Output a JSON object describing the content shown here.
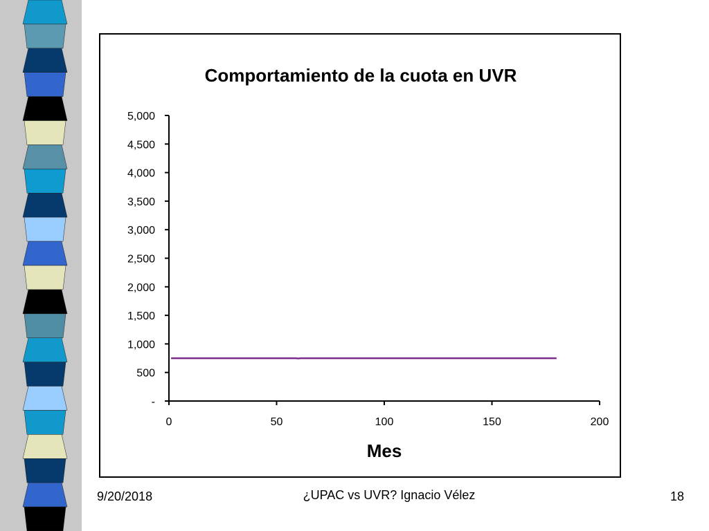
{
  "slide": {
    "date": "9/20/2018",
    "footer_text": "¿UPAC vs UVR? Ignacio Vélez",
    "page_number": "18"
  },
  "decor": {
    "stripe_colors": [
      "#1199cc",
      "#5b9ab0",
      "#063a6d",
      "#3366cc",
      "#000000",
      "#e5e5bb",
      "#5890a8",
      "#0f9ad0",
      "#063a6d",
      "#99ccff",
      "#3366cc",
      "#e5e5bb",
      "#000000",
      "#4f8da5",
      "#1199cc",
      "#063a6d",
      "#99ccff",
      "#1199cc",
      "#e5e5bb",
      "#063a6d",
      "#3366cc",
      "#000000"
    ]
  },
  "chart_data": {
    "type": "line",
    "title": "Comportamiento de la cuota en UVR",
    "xlabel": "Mes",
    "ylabel": "",
    "xlim": [
      0,
      200
    ],
    "ylim": [
      0,
      5000
    ],
    "x_ticks": [
      0,
      50,
      100,
      150,
      200
    ],
    "x_tick_labels": [
      "0",
      "50",
      "100",
      "150",
      "200"
    ],
    "y_ticks": [
      0,
      500,
      1000,
      1500,
      2000,
      2500,
      3000,
      3500,
      4000,
      4500,
      5000
    ],
    "y_tick_labels": [
      "-",
      "500",
      "1,000",
      "1,500",
      "2,000",
      "2,500",
      "3,000",
      "3,500",
      "4,000",
      "4,500",
      "5,000"
    ],
    "grid": false,
    "series": [
      {
        "color": "#7b2b8c",
        "x": [
          1,
          59,
          60,
          61,
          180
        ],
        "y": [
          750,
          750,
          745,
          750,
          750
        ]
      }
    ]
  }
}
